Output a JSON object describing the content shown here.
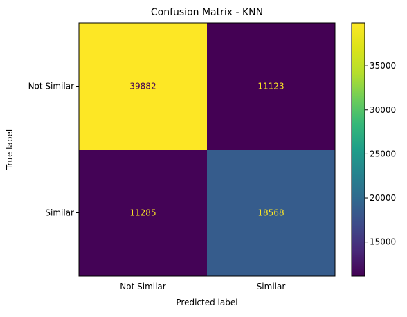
{
  "chart_data": {
    "type": "heatmap",
    "title": "Confusion Matrix - KNN",
    "xlabel": "Predicted label",
    "ylabel": "True label",
    "x_categories": [
      "Not Similar",
      "Similar"
    ],
    "y_categories": [
      "Not Similar",
      "Similar"
    ],
    "values": [
      [
        39882,
        11123
      ],
      [
        11285,
        18568
      ]
    ],
    "colormap": "viridis",
    "colorbar": {
      "range": [
        11123,
        39882
      ],
      "ticks": [
        15000,
        20000,
        25000,
        30000,
        35000
      ],
      "tick_labels": [
        "15000",
        "20000",
        "25000",
        "30000",
        "35000"
      ]
    },
    "colors": {
      "cell_text_on_dark": "#fde725",
      "cell_text_on_light": "#440154"
    }
  }
}
